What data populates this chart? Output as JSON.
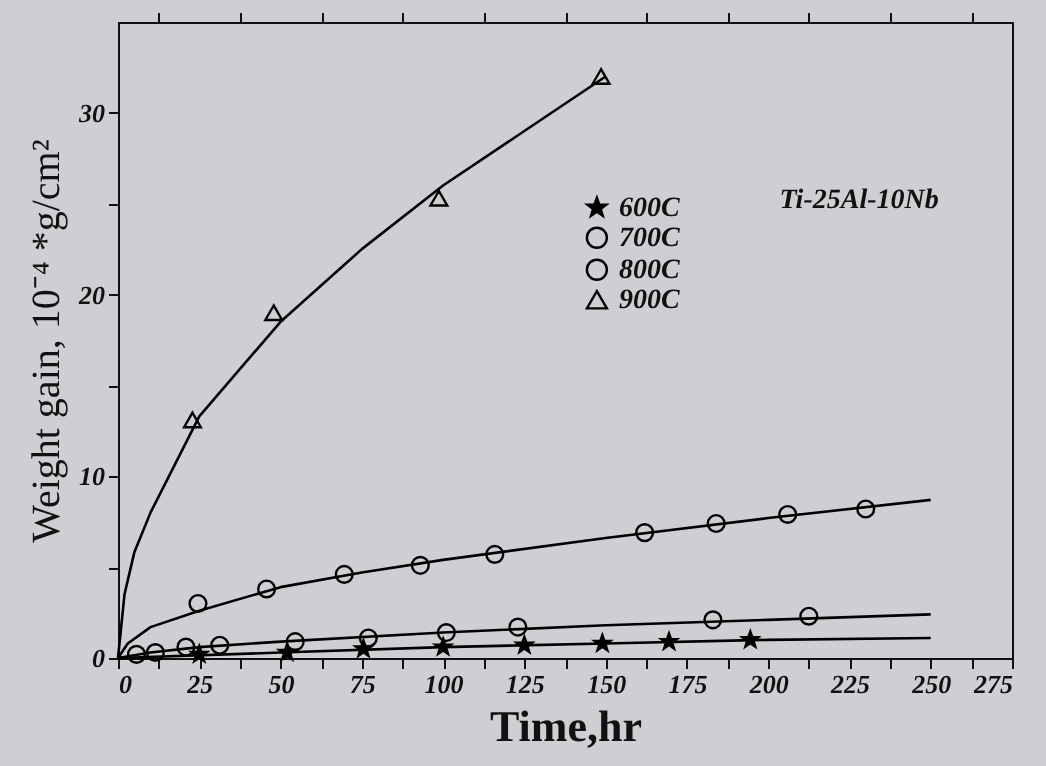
{
  "chart_data": {
    "type": "scatter",
    "xlabel": "Time,hr",
    "ylabel": "Weight gain, 10⁻⁴ *g/cm²",
    "xlim": [
      0,
      275
    ],
    "ylim": [
      0,
      35
    ],
    "xticks": [
      0,
      {
        "value": 12.5,
        "label": null
      },
      25,
      {
        "value": 37.5,
        "label": null
      },
      50,
      {
        "value": 62.5,
        "label": null
      },
      75,
      {
        "value": 87.5,
        "label": null
      },
      100,
      {
        "value": 112.5,
        "label": null
      },
      125,
      {
        "value": 137.5,
        "label": null
      },
      150,
      {
        "value": 162.5,
        "label": null
      },
      175,
      {
        "value": 187.5,
        "label": null
      },
      200,
      {
        "value": 212.5,
        "label": null
      },
      225,
      {
        "value": 237.5,
        "label": null
      },
      250,
      {
        "value": 262.5,
        "label": null
      },
      275
    ],
    "yticks": [
      0,
      {
        "value": 5,
        "label": null
      },
      10,
      {
        "value": 15,
        "label": null
      },
      20,
      {
        "value": 25,
        "label": null
      },
      30
    ],
    "legend": "top right",
    "grid": false,
    "line_style": "solid",
    "annotations": [
      "Ti-25Al-10Nb"
    ],
    "series": [
      {
        "name": "600C",
        "color": "#000000",
        "marker": "star",
        "x": [
          25,
          52,
          75.5,
          100,
          125,
          149,
          169.5,
          194.5
        ],
        "values": [
          0.2,
          0.3,
          0.5,
          0.6,
          0.7,
          0.8,
          0.9,
          1.0
        ]
      },
      {
        "name": "700C",
        "color": "#000000",
        "marker": "circle",
        "x": [
          5.7,
          11.5,
          20.9,
          31.3,
          54.5,
          77,
          101,
          123,
          183,
          212.5
        ],
        "values": [
          0.2,
          0.3,
          0.6,
          0.7,
          0.9,
          1.1,
          1.4,
          1.7,
          2.1,
          2.3
        ]
      },
      {
        "name": "800C",
        "color": "#000000",
        "marker": "circle",
        "x": [
          24.6,
          45.7,
          69.6,
          93,
          115.9,
          162,
          184,
          206,
          230
        ],
        "values": [
          3.0,
          3.8,
          4.6,
          5.1,
          5.7,
          6.9,
          7.4,
          7.9,
          8.2
        ]
      },
      {
        "name": "900C",
        "color": "#000000",
        "marker": "triangle",
        "x": [
          22.9,
          47.9,
          98.7,
          148.6
        ],
        "values": [
          13.1,
          19.0,
          25.3,
          32.0
        ]
      },
      {
        "type": "line",
        "color": "#000000",
        "marker": "none",
        "x": [
          0,
          50,
          100,
          150,
          200,
          250
        ],
        "values": [
          0,
          0.3,
          0.6,
          0.8,
          1.0,
          1.1
        ]
      },
      {
        "type": "line",
        "color": "#000000",
        "marker": "none",
        "x": [
          0,
          10,
          25,
          50,
          100,
          150,
          200,
          250
        ],
        "values": [
          0,
          0.3,
          0.6,
          0.9,
          1.4,
          1.8,
          2.1,
          2.4
        ]
      },
      {
        "type": "line",
        "color": "#000000",
        "marker": "none",
        "x": [
          0,
          3,
          10,
          25,
          50,
          75,
          100,
          150,
          200,
          250
        ],
        "values": [
          0,
          0.8,
          1.7,
          2.6,
          3.9,
          4.7,
          5.4,
          6.6,
          7.7,
          8.7
        ]
      },
      {
        "type": "line",
        "color": "#000000",
        "marker": "none",
        "x": [
          0,
          2,
          5,
          10,
          25,
          50,
          75,
          100,
          125,
          150
        ],
        "values": [
          0,
          3.5,
          5.8,
          8.0,
          13.3,
          18.5,
          22.5,
          26.0,
          29.0,
          32.0
        ]
      }
    ]
  }
}
